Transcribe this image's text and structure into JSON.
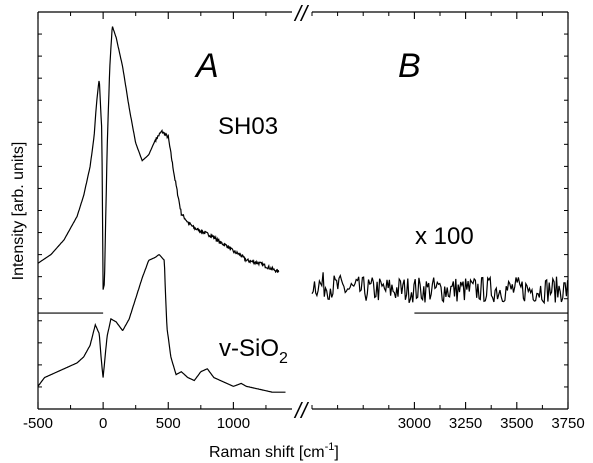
{
  "chart_data": {
    "type": "line",
    "xlabel": "Raman shift [cm",
    "xlabel_sup": "-1",
    "xlabel_end": "]",
    "ylabel": "Intensity [arb. units]",
    "axis_break": true,
    "panels": [
      {
        "label": "A",
        "xlim": [
          -500,
          1450
        ],
        "xticks": [
          -500,
          0,
          500,
          1000
        ]
      },
      {
        "label": "B",
        "xlim": [
          2500,
          3750
        ],
        "xticks": [
          3000,
          3250,
          3500,
          3750
        ]
      }
    ],
    "yticks_visible": false,
    "series": [
      {
        "name": "SH03",
        "panel": "A",
        "x": [
          -500,
          -400,
          -300,
          -200,
          -150,
          -100,
          -70,
          -50,
          -30,
          -10,
          0,
          10,
          30,
          50,
          70,
          100,
          150,
          200,
          250,
          300,
          350,
          400,
          450,
          500,
          550,
          600,
          650,
          700,
          750,
          800,
          850,
          900,
          950,
          1000,
          1050,
          1100,
          1200,
          1300,
          1350
        ],
        "y": [
          0.17,
          0.2,
          0.25,
          0.33,
          0.4,
          0.5,
          0.6,
          0.72,
          0.8,
          0.62,
          0.08,
          0.1,
          0.55,
          0.83,
          0.98,
          0.94,
          0.84,
          0.7,
          0.58,
          0.52,
          0.54,
          0.59,
          0.62,
          0.6,
          0.46,
          0.34,
          0.31,
          0.29,
          0.28,
          0.27,
          0.26,
          0.24,
          0.23,
          0.21,
          0.2,
          0.18,
          0.17,
          0.15,
          0.14
        ]
      },
      {
        "name": "v-SiO₂",
        "panel": "A",
        "x": [
          -500,
          -450,
          -400,
          -300,
          -200,
          -150,
          -100,
          -60,
          -30,
          -10,
          0,
          30,
          60,
          100,
          150,
          200,
          250,
          300,
          350,
          400,
          430,
          450,
          470,
          480,
          490,
          520,
          560,
          600,
          650,
          700,
          750,
          800,
          850,
          900,
          1000,
          1060,
          1100,
          1200,
          1300,
          1400
        ],
        "y": [
          -0.25,
          -0.22,
          -0.21,
          -0.19,
          -0.17,
          -0.15,
          -0.11,
          -0.04,
          -0.07,
          -0.18,
          -0.22,
          -0.08,
          -0.02,
          -0.03,
          -0.06,
          -0.02,
          0.05,
          0.12,
          0.18,
          0.19,
          0.2,
          0.19,
          0.18,
          0.05,
          -0.05,
          -0.15,
          -0.21,
          -0.2,
          -0.22,
          -0.23,
          -0.2,
          -0.19,
          -0.22,
          -0.23,
          -0.25,
          -0.24,
          -0.25,
          -0.26,
          -0.27,
          -0.27
        ]
      },
      {
        "name": "SH03 x 100",
        "panel": "B",
        "x": [
          2500,
          2600,
          2700,
          2800,
          2900,
          3000,
          3100,
          3200,
          3300,
          3400,
          3500,
          3600,
          3700,
          3750
        ],
        "y": [
          0.1,
          0.09,
          0.08,
          0.08,
          0.08,
          0.08,
          0.08,
          0.08,
          0.08,
          0.08,
          0.08,
          0.08,
          0.08,
          0.08
        ],
        "noisy": true
      }
    ],
    "annotations": {
      "SH03": "SH03",
      "vsio2_base": "v-SiO",
      "vsio2_sub": "2",
      "scale": "x 100",
      "break_mark": "//"
    }
  }
}
